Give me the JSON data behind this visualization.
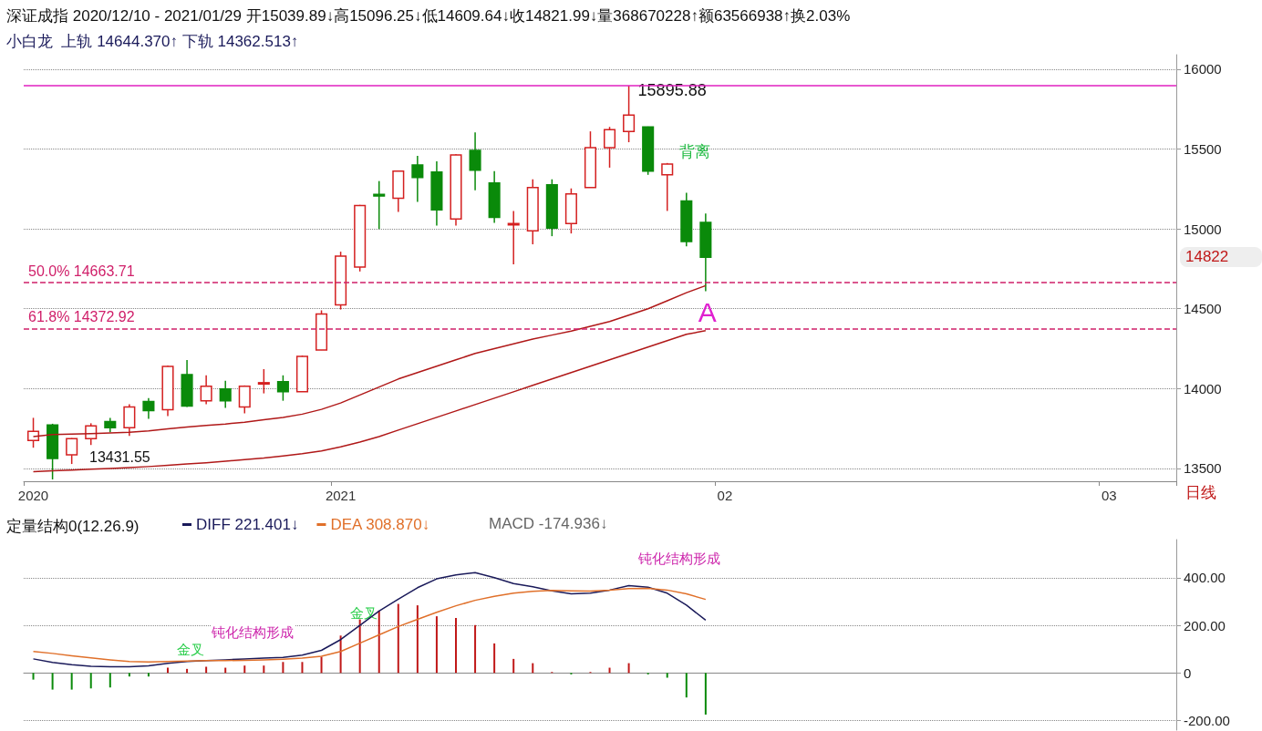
{
  "chart_data": [
    {
      "type": "candlestick",
      "title": "深证成指 2020/12/10 - 2021/01/29 开15039.89↓高15096.25↓低14609.64↓收14821.99↓量368670228↑额63566938↑换2.03%",
      "subtitle": "小白龙  上轨 14644.370↑ 下轨 14362.513↑",
      "categories": [
        "2020",
        null,
        null,
        null,
        null,
        null,
        null,
        null,
        null,
        null,
        null,
        null,
        null,
        null,
        null,
        null,
        "2021",
        null,
        null,
        null,
        null,
        null,
        null,
        null,
        null,
        null,
        null,
        null,
        null,
        null,
        null,
        null,
        null,
        null,
        null,
        null,
        "02",
        null,
        null,
        null,
        null,
        null,
        null,
        null,
        null,
        null,
        null,
        null,
        null,
        null,
        null,
        null,
        null,
        null,
        null,
        null,
        "03",
        null,
        null,
        null
      ],
      "ohlc": [
        [
          13675,
          13817,
          13630,
          13732
        ],
        [
          13772,
          13780,
          13431.55,
          13562
        ],
        [
          13585,
          13690,
          13528,
          13687
        ],
        [
          13687,
          13783,
          13647,
          13766
        ],
        [
          13794,
          13817,
          13726,
          13755
        ],
        [
          13755,
          13902,
          13704,
          13885
        ],
        [
          13919,
          13941,
          13811,
          13862
        ],
        [
          13868,
          14145,
          13828,
          14139
        ],
        [
          14088,
          14179,
          13885,
          13890
        ],
        [
          13924,
          14083,
          13902,
          14015
        ],
        [
          13998,
          14049,
          13879,
          13924
        ],
        [
          13885,
          14020,
          13845,
          14015
        ],
        [
          14030,
          14122,
          13970,
          14037
        ],
        [
          14043,
          14083,
          13924,
          13981
        ],
        [
          13981,
          14207,
          13981,
          14201
        ],
        [
          14241,
          14490,
          14241,
          14467
        ],
        [
          14524,
          14857,
          14495,
          14829
        ],
        [
          14761,
          15150,
          14733,
          15146
        ],
        [
          15215,
          15299,
          14999,
          15205
        ],
        [
          15191,
          15365,
          15106,
          15361
        ],
        [
          15400,
          15457,
          15169,
          15321
        ],
        [
          15355,
          15423,
          15021,
          15118
        ],
        [
          15061,
          15468,
          15021,
          15463
        ],
        [
          15491,
          15604,
          15242,
          15367
        ],
        [
          15287,
          15361,
          15038,
          15072
        ],
        [
          15028,
          15112,
          14778,
          15033
        ],
        [
          14988,
          15310,
          14903,
          15259
        ],
        [
          15276,
          15310,
          14954,
          15005
        ],
        [
          15033,
          15253,
          14971,
          15219
        ],
        [
          15259,
          15610,
          15259,
          15508
        ],
        [
          15508,
          15638,
          15383,
          15621
        ],
        [
          15610,
          15895.88,
          15542,
          15712
        ],
        [
          15638,
          15640,
          15338,
          15361
        ],
        [
          15338,
          15412,
          15112,
          15406
        ],
        [
          15174,
          15225,
          14891,
          14920
        ],
        [
          15039.89,
          15096.25,
          14609.64,
          14821.99
        ],
        null,
        null,
        null,
        null,
        null,
        null,
        null,
        null,
        null,
        null,
        null,
        null,
        null,
        null,
        null,
        null,
        null,
        null,
        null,
        null,
        null,
        null,
        null,
        null
      ],
      "colors": [
        "#d42020",
        "#0a8a0a",
        "#d42020",
        "#d42020",
        "#0a8a0a",
        "#d42020",
        "#0a8a0a",
        "#d42020",
        "#0a8a0a",
        "#d42020",
        "#0a8a0a",
        "#d42020",
        "#d42020",
        "#0a8a0a",
        "#d42020",
        "#d42020",
        "#d42020",
        "#d42020",
        "#0a8a0a",
        "#d42020",
        "#0a8a0a",
        "#0a8a0a",
        "#d42020",
        "#0a8a0a",
        "#0a8a0a",
        "#d42020",
        "#d42020",
        "#0a8a0a",
        "#d42020",
        "#d42020",
        "#d42020",
        "#d42020",
        "#0a8a0a",
        "#d42020",
        "#0a8a0a",
        "#0a8a0a",
        null,
        null,
        null,
        null,
        null,
        null,
        null,
        null,
        null,
        null,
        null,
        null,
        null,
        null,
        null,
        null,
        null,
        null,
        null,
        null,
        null,
        null,
        null,
        null
      ],
      "series": [
        {
          "type": "line",
          "color": "#b01818",
          "values": [
            13700,
            13712,
            13715,
            13718,
            13722,
            13727,
            13735,
            13748,
            13760,
            13770,
            13778,
            13790,
            13805,
            13820,
            13840,
            13870,
            13910,
            13960,
            14010,
            14060,
            14100,
            14140,
            14180,
            14220,
            14250,
            14280,
            14310,
            14335,
            14360,
            14390,
            14420,
            14460,
            14500,
            14550,
            14600,
            14644.37,
            null,
            null,
            null,
            null,
            null,
            null,
            null,
            null,
            null,
            null,
            null,
            null,
            null,
            null,
            null,
            null,
            null,
            null,
            null,
            null,
            null,
            null,
            null,
            null
          ]
        },
        {
          "type": "line",
          "color": "#b01818",
          "values": [
            13480,
            13485,
            13490,
            13495,
            13500,
            13505,
            13512,
            13520,
            13528,
            13536,
            13545,
            13555,
            13565,
            13578,
            13592,
            13610,
            13635,
            13665,
            13700,
            13740,
            13780,
            13820,
            13860,
            13900,
            13940,
            13980,
            14020,
            14060,
            14100,
            14140,
            14180,
            14220,
            14260,
            14300,
            14340,
            14362.51,
            null,
            null,
            null,
            null,
            null,
            null,
            null,
            null,
            null,
            null,
            null,
            null,
            null,
            null,
            null,
            null,
            null,
            null,
            null,
            null,
            null,
            null,
            null,
            null
          ]
        }
      ],
      "ylim": [
        13420,
        16090
      ],
      "yticks": [
        13500,
        14000,
        14500,
        15000,
        15500,
        16000
      ],
      "grid": "y",
      "ref_lines": [
        {
          "axis": "y",
          "value": 15895.88,
          "label": null,
          "color": "#e020c0",
          "line_style": "solid"
        },
        {
          "axis": "y",
          "value": 14663.71,
          "label": "50.0% 14663.71",
          "color": "#d0206a",
          "line_style": "dashed"
        },
        {
          "axis": "y",
          "value": 14372.92,
          "label": "61.8% 14372.92",
          "color": "#d0206a",
          "line_style": "dashed"
        }
      ],
      "annotations": [
        {
          "text": "15895.88",
          "y": 15895.88
        },
        "13431.55",
        "背离",
        {
          "text": "A",
          "y": 14609.64
        },
        "14822",
        "日线"
      ]
    },
    {
      "type": "bar",
      "title": "定量结构0(12.26.9)",
      "categories": [
        "2020",
        null,
        null,
        null,
        null,
        null,
        null,
        null,
        null,
        null,
        null,
        null,
        null,
        null,
        null,
        null,
        "2021",
        null,
        null,
        null,
        null,
        null,
        null,
        null,
        null,
        null,
        null,
        null,
        null,
        null,
        null,
        null,
        null,
        null,
        null,
        null,
        "02",
        null,
        null,
        null,
        null,
        null,
        null,
        null,
        null,
        null,
        null,
        null,
        null,
        null,
        null,
        null,
        null,
        null,
        null,
        null,
        "03",
        null,
        null,
        null
      ],
      "tick_labels": "y",
      "values": [
        -28,
        -70,
        -70,
        -65,
        -61,
        -15,
        -15,
        22,
        17,
        26,
        22,
        31,
        31,
        46,
        46,
        68,
        157,
        225,
        262,
        290,
        284,
        238,
        231,
        201,
        124,
        59,
        41,
        4,
        -6,
        4,
        22,
        41,
        -6,
        -20,
        -103,
        -174.936,
        null,
        null,
        null,
        null,
        null,
        null,
        null,
        null,
        null,
        null,
        null,
        null,
        null,
        null,
        null,
        null,
        null,
        null,
        null,
        null,
        null,
        null,
        null,
        null
      ],
      "colors": [
        "#0a8a0a",
        "#0a8a0a",
        "#0a8a0a",
        "#0a8a0a",
        "#0a8a0a",
        "#0a8a0a",
        "#0a8a0a",
        "#c01818",
        "#c01818",
        "#c01818",
        "#c01818",
        "#c01818",
        "#c01818",
        "#c01818",
        "#c01818",
        "#c01818",
        "#c01818",
        "#c01818",
        "#c01818",
        "#c01818",
        "#c01818",
        "#c01818",
        "#c01818",
        "#c01818",
        "#c01818",
        "#c01818",
        "#c01818",
        "#c01818",
        "#0a8a0a",
        "#c01818",
        "#c01818",
        "#c01818",
        "#0a8a0a",
        "#0a8a0a",
        "#0a8a0a",
        "#0a8a0a",
        null,
        null,
        null,
        null,
        null,
        null,
        null,
        null,
        null,
        null,
        null,
        null,
        null,
        null,
        null,
        null,
        null,
        null,
        null,
        null,
        null,
        null,
        null,
        null
      ],
      "series": [
        {
          "name": "DIFF 221.401↓",
          "type": "line",
          "color": "#1a1a5a",
          "values": [
            59,
            44,
            35,
            28,
            26,
            26,
            30,
            40,
            48,
            52,
            55,
            59,
            62,
            65,
            75,
            95,
            140,
            200,
            260,
            310,
            358,
            395,
            412,
            421,
            400,
            375,
            362,
            345,
            332,
            335,
            348,
            367,
            360,
            335,
            285,
            221.401,
            null,
            null,
            null,
            null,
            null,
            null,
            null,
            null,
            null,
            null,
            null,
            null,
            null,
            null,
            null,
            null,
            null,
            null,
            null,
            null,
            null,
            null,
            null,
            null
          ]
        },
        {
          "name": "DEA 308.870↓",
          "type": "line",
          "color": "#e0702a",
          "values": [
            90,
            82,
            72,
            63,
            55,
            48,
            46,
            48,
            50,
            52,
            52,
            53,
            55,
            58,
            62,
            70,
            90,
            125,
            160,
            195,
            225,
            255,
            282,
            305,
            322,
            335,
            343,
            347,
            345,
            344,
            348,
            354,
            355,
            348,
            332,
            308.87,
            null,
            null,
            null,
            null,
            null,
            null,
            null,
            null,
            null,
            null,
            null,
            null,
            null,
            null,
            null,
            null,
            null,
            null,
            null,
            null,
            null,
            null,
            null,
            null
          ]
        }
      ],
      "legend": "top left",
      "ylim": [
        -240,
        560
      ],
      "yticks": [
        {
          "value": -200,
          "label": "-200.00"
        },
        0,
        {
          "value": 200,
          "label": "200.00"
        },
        {
          "value": 400,
          "label": "400.00"
        }
      ],
      "grid": "y",
      "annotations": [
        {
          "text": "金叉",
          "y": 48
        },
        {
          "text": "钝化结构形成",
          "y": 75
        },
        {
          "text": "金叉",
          "y": 200
        },
        {
          "text": "钝化结构形成",
          "y": 360
        },
        "MACD -174.936↓"
      ]
    }
  ]
}
